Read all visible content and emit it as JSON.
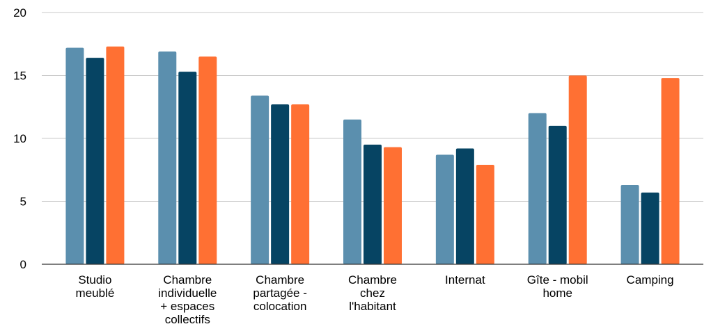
{
  "chart_data": {
    "type": "bar",
    "title": "",
    "xlabel": "",
    "ylabel": "",
    "ylim": [
      0,
      20
    ],
    "yticks": [
      0,
      5,
      10,
      15,
      20
    ],
    "grid": true,
    "legend": "none",
    "categories": [
      [
        "Studio",
        "meublé"
      ],
      [
        "Chambre",
        "individuelle",
        "+ espaces",
        "collectifs"
      ],
      [
        "Chambre",
        "partagée -",
        "colocation"
      ],
      [
        "Chambre",
        "chez",
        "l'habitant"
      ],
      [
        "Internat"
      ],
      [
        "Gîte - mobil",
        "home"
      ],
      [
        "Camping"
      ]
    ],
    "series": [
      {
        "color": "#5b8fae",
        "values": [
          17.2,
          16.9,
          13.4,
          11.5,
          8.7,
          12.0,
          6.3
        ]
      },
      {
        "color": "#064463",
        "values": [
          16.4,
          15.3,
          12.7,
          9.5,
          9.2,
          11.0,
          5.7
        ]
      },
      {
        "color": "#ff7033",
        "values": [
          17.3,
          16.5,
          12.7,
          9.3,
          7.9,
          15.0,
          14.8
        ]
      }
    ]
  }
}
